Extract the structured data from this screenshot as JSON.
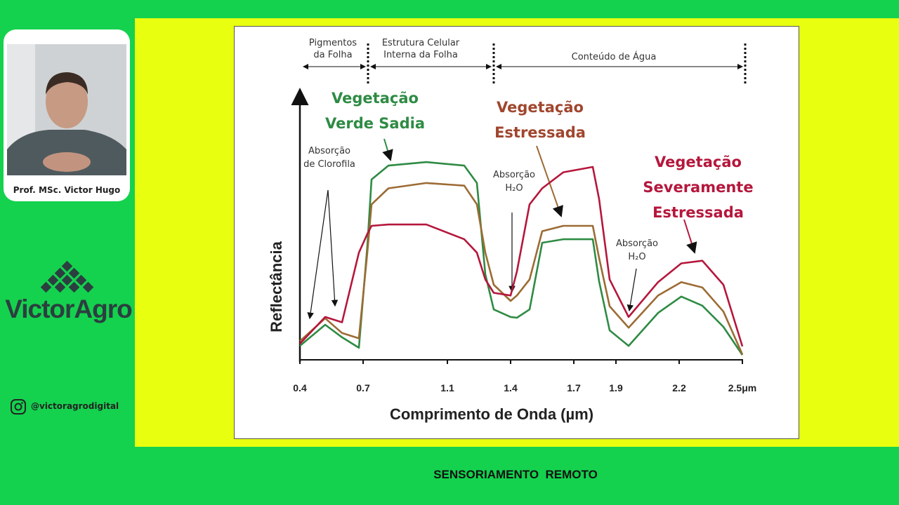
{
  "presenter": {
    "name": "Prof. MSc. Victor Hugo"
  },
  "brand": {
    "name": "VictorAgro",
    "handle": "@victoragrodigital"
  },
  "footer": {
    "title": "SENSORIAMENTO  REMOTO"
  },
  "chart_data": {
    "type": "line",
    "x_label": "Comprimento de Onda (µm)",
    "y_label": "Reflectância",
    "sections": [
      "Pigmentos da Folha",
      "Estrutura Celular Interna da Folha",
      "Conteúdo de Água"
    ],
    "annotations": [
      "Absorção de Clorofila",
      "Absorção H₂O",
      "Absorção H₂O"
    ],
    "xlim": [
      0.4,
      2.5
    ],
    "xticks": [
      0.4,
      0.7,
      1.1,
      1.4,
      1.7,
      1.9,
      2.2,
      {
        "value": 2.5,
        "label": "2.5μm"
      }
    ],
    "ylim": [
      0,
      100
    ],
    "grid": false,
    "x": [
      0.4,
      0.52,
      0.6,
      0.68,
      0.72,
      0.74,
      0.82,
      1.0,
      1.18,
      1.24,
      1.28,
      1.32,
      1.4,
      1.43,
      1.49,
      1.55,
      1.65,
      1.79,
      1.82,
      1.87,
      1.96,
      2.1,
      2.21,
      2.31,
      2.41,
      2.5
    ],
    "series": [
      {
        "name": "Vegetação Verde Sadia",
        "color": "#2e8b44",
        "values": [
          5.2,
          13.1,
          8.4,
          4.5,
          42.4,
          67.3,
          72.5,
          73.8,
          72.5,
          66,
          31.9,
          18.8,
          16,
          15.7,
          18.8,
          43.7,
          45,
          45,
          29.3,
          11,
          5.2,
          17.5,
          23.6,
          20.2,
          12.3,
          1.8
        ]
      },
      {
        "name": "Vegetação Estressada",
        "color": "#9c6b34",
        "values": [
          7,
          15.5,
          10,
          8,
          40,
          58,
          64,
          66,
          65,
          58,
          40,
          28,
          22,
          24,
          30,
          48,
          50,
          50,
          38,
          20,
          12,
          24,
          29,
          27,
          18,
          2
        ]
      },
      {
        "name": "Vegetação Severamente Estressada",
        "color": "#b5173c",
        "values": [
          6,
          16,
          14,
          40,
          47,
          50,
          50.5,
          50.5,
          45,
          40,
          30,
          25,
          24,
          33,
          58,
          64,
          70,
          72,
          60,
          30,
          16,
          29,
          36,
          37,
          28,
          5
        ]
      }
    ]
  }
}
